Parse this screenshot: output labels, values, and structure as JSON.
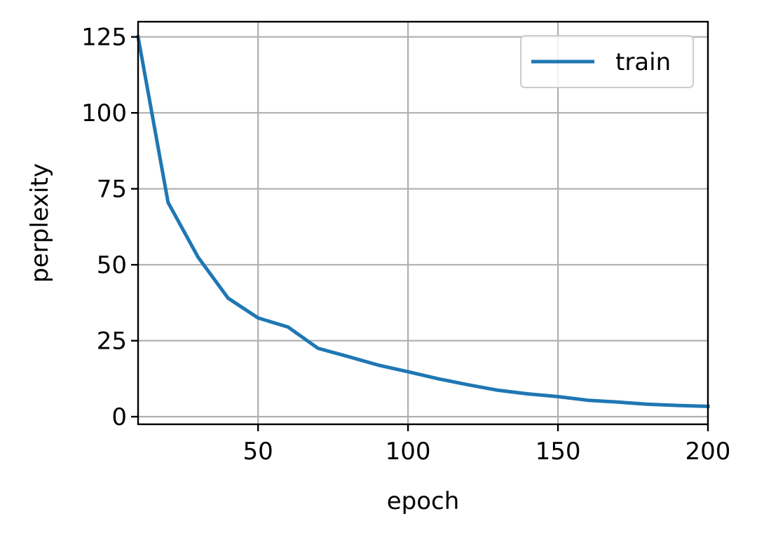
{
  "chart_data": {
    "type": "line",
    "title": "",
    "xlabel": "epoch",
    "ylabel": "perplexity",
    "xlim": [
      10,
      200
    ],
    "ylim": [
      -2.5,
      130
    ],
    "x_ticks": [
      50,
      100,
      150,
      200
    ],
    "y_ticks": [
      0,
      25,
      50,
      75,
      100,
      125
    ],
    "grid": true,
    "legend_position": "top-right",
    "series": [
      {
        "name": "train",
        "color": "#1f77b4",
        "x": [
          10,
          20,
          30,
          40,
          50,
          60,
          70,
          80,
          90,
          100,
          110,
          120,
          130,
          140,
          150,
          160,
          170,
          180,
          190,
          200
        ],
        "y": [
          125,
          70.5,
          52.5,
          39,
          32.5,
          29.5,
          22.5,
          19.8,
          17,
          14.8,
          12.5,
          10.5,
          8.7,
          7.5,
          6.6,
          5.4,
          4.8,
          4.1,
          3.7,
          3.4
        ]
      }
    ]
  }
}
